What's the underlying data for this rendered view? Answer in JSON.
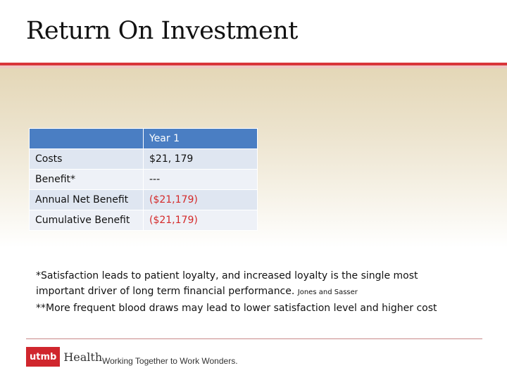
{
  "slide": {
    "title": "Return On Investment"
  },
  "table": {
    "header": [
      "",
      "Year 1"
    ],
    "rows": [
      {
        "label": "Costs",
        "value": "$21, 179"
      },
      {
        "label": "Benefit*",
        "value": "---"
      },
      {
        "label": "Annual Net Benefit",
        "value": "($21,179)"
      },
      {
        "label": "Cumulative Benefit",
        "value": "($21,179)"
      }
    ]
  },
  "notes": {
    "line1": "*Satisfaction leads to patient loyalty, and increased loyalty is the single most important driver of long term financial performance.",
    "citation": "Jones and Sasser",
    "line2": "**More frequent blood draws may lead to lower satisfaction level and higher cost"
  },
  "footer": {
    "logo_badge": "utmb",
    "logo_text": "Health",
    "tagline": "Working Together to Work Wonders."
  },
  "colors": {
    "accent_red": "#d9353a",
    "table_header_blue": "#4a7ec3",
    "negative_red": "#d42a2a"
  }
}
